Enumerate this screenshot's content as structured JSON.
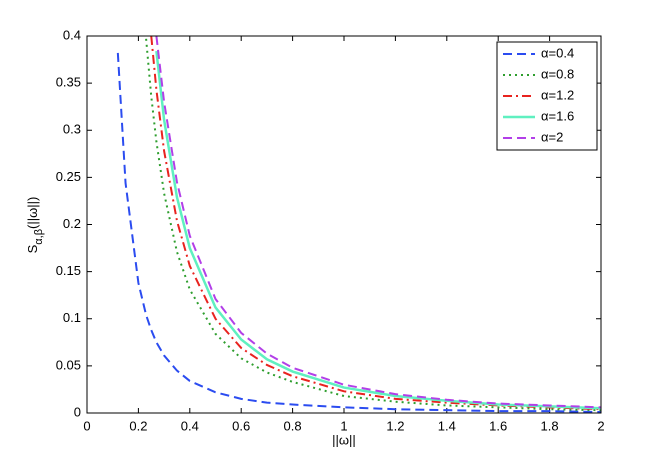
{
  "chart_data": {
    "type": "line",
    "xlabel": "||ω||",
    "ylabel": {
      "base": "S",
      "sub": "α,β",
      "rest": "(||ω||)"
    },
    "x": [
      0.1,
      0.12,
      0.15,
      0.2,
      0.23,
      0.25,
      0.27,
      0.3,
      0.35,
      0.4,
      0.5,
      0.6,
      0.7,
      0.8,
      1,
      1.2,
      1.4,
      1.6,
      1.8,
      2
    ],
    "series": [
      {
        "name": "α=0.4",
        "color": "#2b4cf0",
        "dash": "dashed",
        "values": [
          null,
          0.382,
          0.244,
          0.138,
          0.104,
          0.088,
          0.075,
          0.061,
          0.045,
          0.034,
          0.022,
          0.015,
          0.011,
          0.009,
          0.006,
          0.004,
          0.003,
          0.002,
          0.002,
          0.001
        ]
      },
      {
        "name": "α=0.8",
        "color": "#2e9e2e",
        "dash": "dotted",
        "values": [
          null,
          null,
          null,
          null,
          0.397,
          0.336,
          0.288,
          0.233,
          0.171,
          0.131,
          0.084,
          0.058,
          0.043,
          0.033,
          0.018,
          0.012,
          0.008,
          0.006,
          0.004,
          0.003
        ]
      },
      {
        "name": "α=1.2",
        "color": "#e8231f",
        "dash": "dashdot",
        "values": [
          null,
          null,
          null,
          null,
          null,
          0.4,
          0.343,
          0.278,
          0.204,
          0.156,
          0.1,
          0.069,
          0.051,
          0.039,
          0.023,
          0.015,
          0.011,
          0.008,
          0.006,
          0.004
        ]
      },
      {
        "name": "α=1.6",
        "color": "#5ff0c0",
        "dash": "solid",
        "values": [
          null,
          null,
          null,
          null,
          null,
          null,
          0.384,
          0.311,
          0.229,
          0.175,
          0.112,
          0.078,
          0.057,
          0.044,
          0.027,
          0.018,
          0.013,
          0.009,
          0.007,
          0.005
        ]
      },
      {
        "name": "α=2",
        "color": "#b23fe8",
        "dash": "dashed",
        "values": [
          null,
          null,
          null,
          null,
          null,
          null,
          0.4,
          0.33,
          0.245,
          0.188,
          0.121,
          0.085,
          0.063,
          0.048,
          0.03,
          0.02,
          0.014,
          0.01,
          0.008,
          0.006
        ]
      }
    ],
    "xlim": [
      0,
      2
    ],
    "xticks": [
      0,
      0.2,
      0.4,
      0.6,
      0.8,
      1,
      1.2,
      1.4,
      1.6,
      1.8,
      2
    ],
    "ylim": [
      0,
      0.4
    ],
    "yticks": [
      0,
      0.05,
      0.1,
      0.15,
      0.2,
      0.25,
      0.3,
      0.35,
      0.4
    ],
    "grid": false,
    "legend": "top-right"
  }
}
